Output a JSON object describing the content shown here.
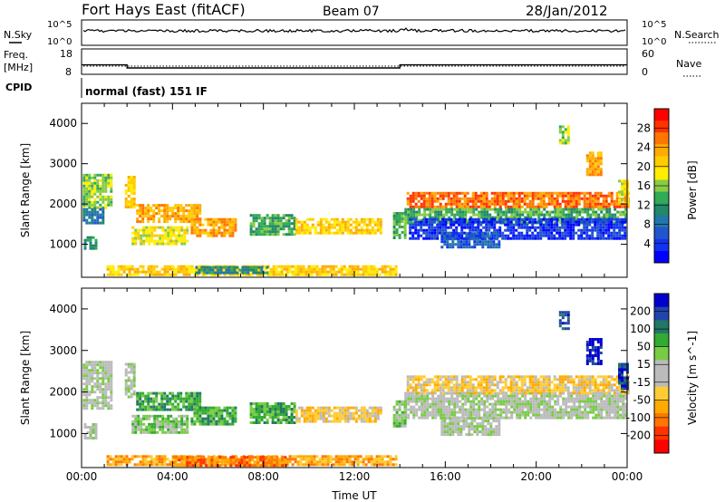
{
  "header": {
    "title": "Fort Hays East (fitACF)",
    "beam": "Beam 07",
    "date": "28/Jan/2012"
  },
  "strips": {
    "noise": {
      "left_label": "N.Sky",
      "right_label": "N.Search",
      "left_ticks": [
        "10^5",
        "10^0"
      ],
      "right_ticks": [
        "10^5",
        "10^0"
      ]
    },
    "freq": {
      "left_label_line1": "Freq.",
      "left_label_line2": "[MHz]",
      "right_label": "Nave",
      "left_ticks": [
        "18",
        "8"
      ],
      "right_ticks": [
        "60",
        "0"
      ],
      "steps": [
        {
          "from_hour": 0,
          "to_hour": 2,
          "freq_mhz": 11.7
        },
        {
          "from_hour": 2,
          "to_hour": 14,
          "freq_mhz": 10.5
        },
        {
          "from_hour": 14,
          "to_hour": 24,
          "freq_mhz": 11.7
        }
      ]
    },
    "cpid": {
      "label": "CPID",
      "text": "normal (fast) 151 IF"
    }
  },
  "chart_data": [
    {
      "type": "heatmap",
      "ylabel": "Slant Range [km]",
      "yticks": [
        "4000",
        "3000",
        "2000",
        "1000"
      ],
      "ytick_values": [
        4000,
        3000,
        2000,
        1000
      ],
      "ylim": [
        180,
        4500
      ],
      "xlim": [
        0,
        24
      ],
      "colorbar": {
        "label": "Power [dB]",
        "ticks": [
          "28",
          "24",
          "20",
          "16",
          "12",
          "8",
          "4"
        ],
        "colors": [
          "#ff0000",
          "#ff3300",
          "#ff7700",
          "#ffaa00",
          "#ffcc00",
          "#ffee00",
          "#88cc44",
          "#33aa55",
          "#228866",
          "#2277aa",
          "#2255cc",
          "#1133ee",
          "#0000ff"
        ]
      },
      "regions": [
        {
          "x0": 0.05,
          "x1": 1.3,
          "y0": 1900,
          "y1": 2750,
          "level": 6
        },
        {
          "x0": 0.05,
          "x1": 0.9,
          "y0": 1500,
          "y1": 1900,
          "level": 9
        },
        {
          "x0": 0.1,
          "x1": 0.6,
          "y0": 900,
          "y1": 1200,
          "level": 8
        },
        {
          "x0": 1.9,
          "x1": 2.3,
          "y0": 1900,
          "y1": 2700,
          "level": 4
        },
        {
          "x0": 2.4,
          "x1": 5.2,
          "y0": 1550,
          "y1": 2000,
          "level": 3
        },
        {
          "x0": 2.2,
          "x1": 4.6,
          "y0": 1000,
          "y1": 1450,
          "level": 5
        },
        {
          "x0": 4.8,
          "x1": 6.8,
          "y0": 1200,
          "y1": 1650,
          "level": 3
        },
        {
          "x0": 7.4,
          "x1": 9.4,
          "y0": 1250,
          "y1": 1750,
          "level": 7
        },
        {
          "x0": 9.4,
          "x1": 13.2,
          "y0": 1300,
          "y1": 1650,
          "level": 4
        },
        {
          "x0": 1.1,
          "x1": 13.8,
          "y0": 250,
          "y1": 480,
          "level": 4
        },
        {
          "x0": 5.0,
          "x1": 8.2,
          "y0": 260,
          "y1": 460,
          "level": 8
        },
        {
          "x0": 13.7,
          "x1": 14.2,
          "y0": 1150,
          "y1": 1800,
          "level": 7
        },
        {
          "x0": 14.3,
          "x1": 24.0,
          "y0": 1900,
          "y1": 2300,
          "level": 2
        },
        {
          "x0": 14.2,
          "x1": 24.0,
          "y0": 1500,
          "y1": 1900,
          "level": 7
        },
        {
          "x0": 14.4,
          "x1": 23.9,
          "y0": 1150,
          "y1": 1650,
          "level": 11
        },
        {
          "x0": 15.8,
          "x1": 18.4,
          "y0": 950,
          "y1": 1300,
          "level": 10
        },
        {
          "x0": 21.0,
          "x1": 21.4,
          "y0": 3500,
          "y1": 3950,
          "level": 6
        },
        {
          "x0": 22.2,
          "x1": 22.9,
          "y0": 2700,
          "y1": 3300,
          "level": 3
        },
        {
          "x0": 23.6,
          "x1": 24.0,
          "y0": 2000,
          "y1": 2600,
          "level": 5
        }
      ]
    },
    {
      "type": "heatmap",
      "ylabel": "Slant Range [km]",
      "yticks": [
        "4000",
        "3000",
        "2000",
        "1000"
      ],
      "ytick_values": [
        4000,
        3000,
        2000,
        1000
      ],
      "ylim": [
        180,
        4500
      ],
      "xlim": [
        0,
        24
      ],
      "xlabel": "Time UT",
      "xticks": [
        "00:00",
        "04:00",
        "08:00",
        "12:00",
        "16:00",
        "20:00",
        "00:00"
      ],
      "xtick_values": [
        0,
        4,
        8,
        12,
        16,
        20,
        24
      ],
      "colorbar": {
        "label": "Velocity [m s^-1]",
        "ticks": [
          "200",
          "100",
          "50",
          "15",
          "-15",
          "-50",
          "-100",
          "-200"
        ],
        "colors": [
          "#0000cc",
          "#2244aa",
          "#227766",
          "#33aa33",
          "#77cc44",
          "#bbbbbb",
          "#bbbbbb",
          "#ffcc33",
          "#ffaa00",
          "#ff7700",
          "#ff3300",
          "#ff0000"
        ]
      },
      "regions": [
        {
          "x0": 0.05,
          "x1": 1.3,
          "y0": 1600,
          "y1": 2750,
          "level": 5
        },
        {
          "x0": 0.1,
          "x1": 0.6,
          "y0": 900,
          "y1": 1250,
          "level": 5
        },
        {
          "x0": 1.9,
          "x1": 2.3,
          "y0": 1900,
          "y1": 2700,
          "level": 5
        },
        {
          "x0": 2.4,
          "x1": 5.2,
          "y0": 1550,
          "y1": 2000,
          "level": 3
        },
        {
          "x0": 2.2,
          "x1": 4.6,
          "y0": 1000,
          "y1": 1450,
          "level": 4
        },
        {
          "x0": 4.8,
          "x1": 6.8,
          "y0": 1200,
          "y1": 1650,
          "level": 3
        },
        {
          "x0": 7.4,
          "x1": 9.4,
          "y0": 1250,
          "y1": 1750,
          "level": 3
        },
        {
          "x0": 9.4,
          "x1": 13.2,
          "y0": 1300,
          "y1": 1650,
          "level": 7
        },
        {
          "x0": 1.1,
          "x1": 13.8,
          "y0": 250,
          "y1": 480,
          "level": 8
        },
        {
          "x0": 4.0,
          "x1": 9.0,
          "y0": 260,
          "y1": 460,
          "level": 9
        },
        {
          "x0": 13.7,
          "x1": 14.2,
          "y0": 1150,
          "y1": 1800,
          "level": 4
        },
        {
          "x0": 14.2,
          "x1": 24.0,
          "y0": 1350,
          "y1": 2000,
          "level": 5
        },
        {
          "x0": 15.8,
          "x1": 18.4,
          "y0": 950,
          "y1": 1400,
          "level": 5
        },
        {
          "x0": 14.3,
          "x1": 24.0,
          "y0": 2000,
          "y1": 2400,
          "level": 7
        },
        {
          "x0": 21.0,
          "x1": 21.4,
          "y0": 3500,
          "y1": 3950,
          "level": 1
        },
        {
          "x0": 22.2,
          "x1": 22.9,
          "y0": 2700,
          "y1": 3300,
          "level": 0
        },
        {
          "x0": 23.6,
          "x1": 24.0,
          "y0": 2100,
          "y1": 2700,
          "level": 1
        }
      ]
    }
  ]
}
